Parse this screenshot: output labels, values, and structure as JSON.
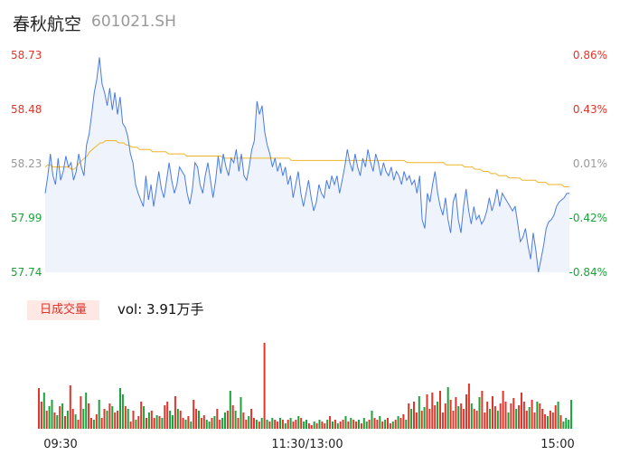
{
  "header": {
    "name": "春秋航空",
    "code": "601021.SH"
  },
  "volume_panel": {
    "badge": "日成交量",
    "vol_text": "vol: 3.91万手"
  },
  "colors": {
    "price_line": "#4a7ce0",
    "avg_line": "#f0b429",
    "up": "#e0352b",
    "down": "#1aa33a",
    "left_axis_upper": "#e0352b",
    "left_axis_lower": "#1aa33a"
  },
  "chart_data": [
    {
      "type": "line",
      "title": "",
      "xlabel": "",
      "ylabel": "",
      "ylim": [
        57.74,
        58.73
      ],
      "y_ticks": [
        "58.73",
        "58.48",
        "58.23",
        "57.99",
        "57.74"
      ],
      "y2_ticks": [
        "0.86%",
        "0.43%",
        "0.01%",
        "-0.42%",
        "-0.84%"
      ],
      "x_ticks": [
        "09:30",
        "11:30/13:00",
        "15:00"
      ],
      "series": [
        {
          "values": [
            58.1,
            58.18,
            58.28,
            58.18,
            58.14,
            58.26,
            58.16,
            58.2,
            58.27,
            58.22,
            58.24,
            58.16,
            58.2,
            58.28,
            58.22,
            58.18,
            58.32,
            58.37,
            58.46,
            58.56,
            58.62,
            58.72,
            58.6,
            58.56,
            58.5,
            58.58,
            58.48,
            58.56,
            58.46,
            58.54,
            58.42,
            58.4,
            58.36,
            58.28,
            58.24,
            58.14,
            58.1,
            58.07,
            58.04,
            58.18,
            58.07,
            58.14,
            58.04,
            58.12,
            58.2,
            58.12,
            58.08,
            58.16,
            58.24,
            58.16,
            58.1,
            58.14,
            58.22,
            58.2,
            58.18,
            58.1,
            58.05,
            58.12,
            58.24,
            58.22,
            58.14,
            58.1,
            58.18,
            58.24,
            58.16,
            58.08,
            58.16,
            58.27,
            58.19,
            58.28,
            58.22,
            58.18,
            58.26,
            58.24,
            58.3,
            58.2,
            58.28,
            58.18,
            58.16,
            58.22,
            58.3,
            58.34,
            58.52,
            58.46,
            58.5,
            58.38,
            58.32,
            58.28,
            58.22,
            58.26,
            58.2,
            58.24,
            58.18,
            58.22,
            58.14,
            58.18,
            58.08,
            58.14,
            58.2,
            58.1,
            58.04,
            58.1,
            58.16,
            58.08,
            58.02,
            58.06,
            58.14,
            58.1,
            58.08,
            58.16,
            58.12,
            58.18,
            58.14,
            58.18,
            58.1,
            58.16,
            58.22,
            58.3,
            58.24,
            58.2,
            58.28,
            58.22,
            58.18,
            58.26,
            58.22,
            58.3,
            58.24,
            58.2,
            58.28,
            58.24,
            58.18,
            58.24,
            58.2,
            58.18,
            58.22,
            58.16,
            58.2,
            58.18,
            58.14,
            58.2,
            58.16,
            58.18,
            58.14,
            58.16,
            58.1,
            58.18,
            57.98,
            57.94,
            58.1,
            58.06,
            58.14,
            58.2,
            58.1,
            58.04,
            58.0,
            58.08,
            57.98,
            57.92,
            58.06,
            58.1,
            57.98,
            57.92,
            58.04,
            58.12,
            58.02,
            57.96,
            58.04,
            57.98,
            58.0,
            57.96,
            57.98,
            58.02,
            58.08,
            58.02,
            58.06,
            58.12,
            58.04,
            58.1,
            58.08,
            58.06,
            58.04,
            58.02,
            58.04,
            57.96,
            57.88,
            57.9,
            57.94,
            57.86,
            57.8,
            57.92,
            57.84,
            57.74,
            57.8,
            57.86,
            57.94,
            57.97,
            57.98,
            58.0,
            58.04,
            58.06,
            58.07,
            58.08,
            58.1,
            58.1
          ]
        },
        {
          "values": [
            58.22,
            58.23,
            58.23,
            58.22,
            58.22,
            58.22,
            58.22,
            58.22,
            58.22,
            58.22,
            58.21,
            58.21,
            58.22,
            58.24,
            58.25,
            58.26,
            58.27,
            58.29,
            58.3,
            58.31,
            58.32,
            58.33,
            58.33,
            58.34,
            58.34,
            58.34,
            58.34,
            58.34,
            58.33,
            58.33,
            58.33,
            58.32,
            58.32,
            58.31,
            58.31,
            58.31,
            58.3,
            58.3,
            58.3,
            58.3,
            58.3,
            58.29,
            58.29,
            58.29,
            58.29,
            58.29,
            58.29,
            58.28,
            58.28,
            58.28,
            58.28,
            58.28,
            58.28,
            58.28,
            58.27,
            58.27,
            58.27,
            58.27,
            58.27,
            58.27,
            58.27,
            58.27,
            58.27,
            58.27,
            58.27,
            58.27,
            58.27,
            58.27,
            58.26,
            58.26,
            58.26,
            58.26,
            58.26,
            58.26,
            58.26,
            58.26,
            58.26,
            58.26,
            58.26,
            58.26,
            58.26,
            58.26,
            58.26,
            58.26,
            58.26,
            58.26,
            58.26,
            58.26,
            58.26,
            58.26,
            58.26,
            58.26,
            58.26,
            58.26,
            58.25,
            58.25,
            58.25,
            58.25,
            58.25,
            58.25,
            58.25,
            58.25,
            58.25,
            58.25,
            58.25,
            58.25,
            58.25,
            58.25,
            58.25,
            58.25,
            58.25,
            58.25,
            58.25,
            58.25,
            58.25,
            58.25,
            58.25,
            58.25,
            58.25,
            58.25,
            58.25,
            58.25,
            58.25,
            58.25,
            58.25,
            58.25,
            58.25,
            58.25,
            58.25,
            58.25,
            58.25,
            58.25,
            58.25,
            58.25,
            58.25,
            58.25,
            58.25,
            58.25,
            58.24,
            58.24,
            58.24,
            58.24,
            58.24,
            58.24,
            58.24,
            58.24,
            58.24,
            58.24,
            58.24,
            58.24,
            58.24,
            58.24,
            58.24,
            58.23,
            58.23,
            58.23,
            58.23,
            58.23,
            58.23,
            58.23,
            58.22,
            58.22,
            58.22,
            58.22,
            58.21,
            58.21,
            58.21,
            58.2,
            58.2,
            58.2,
            58.19,
            58.19,
            58.19,
            58.18,
            58.18,
            58.18,
            58.18,
            58.17,
            58.17,
            58.17,
            58.17,
            58.17,
            58.16,
            58.16,
            58.16,
            58.16,
            58.16,
            58.16,
            58.15,
            58.15,
            58.15,
            58.15,
            58.14,
            58.14,
            58.14,
            58.14,
            58.14,
            58.14,
            58.13,
            58.13,
            58.13
          ]
        }
      ]
    },
    {
      "type": "bar",
      "title": "",
      "series": [
        {
          "values": [
            45,
            30,
            40,
            20,
            25,
            32,
            18,
            15,
            25,
            28,
            14,
            20,
            48,
            22,
            16,
            10,
            36,
            22,
            40,
            28,
            12,
            10,
            16,
            32,
            12,
            22,
            20,
            28,
            25,
            18,
            20,
            45,
            38,
            25,
            22,
            8,
            20,
            10,
            14,
            30,
            25,
            12,
            18,
            20,
            12,
            15,
            14,
            12,
            26,
            30,
            20,
            15,
            36,
            22,
            20,
            12,
            10,
            14,
            8,
            32,
            22,
            20,
            12,
            15,
            10,
            8,
            12,
            14,
            22,
            10,
            12,
            18,
            20,
            42,
            26,
            20,
            12,
            35,
            18,
            10,
            14,
            22,
            12,
            10,
            8,
            12,
            95,
            10,
            8,
            12,
            10,
            8,
            12,
            10,
            6,
            10,
            12,
            8,
            10,
            14,
            12,
            8,
            10,
            6,
            4,
            8,
            6,
            10,
            8,
            6,
            10,
            14,
            8,
            10,
            6,
            8,
            10,
            14,
            8,
            12,
            10,
            8,
            10,
            6,
            12,
            8,
            10,
            20,
            12,
            10,
            14,
            8,
            10,
            12,
            6,
            8,
            10,
            14,
            12,
            16,
            10,
            28,
            22,
            30,
            18,
            36,
            20,
            24,
            38,
            22,
            40,
            26,
            30,
            42,
            18,
            28,
            46,
            32,
            20,
            35,
            25,
            28,
            22,
            38,
            50,
            28,
            22,
            20,
            35,
            42,
            18,
            30,
            22,
            36,
            25,
            20,
            28,
            42,
            30,
            18,
            28,
            34,
            22,
            26,
            40,
            30,
            20,
            24,
            32,
            18,
            30,
            28,
            22,
            16,
            14,
            20,
            18,
            26,
            30,
            15,
            8,
            12,
            10,
            32
          ]
        }
      ],
      "up_flags": [
        1,
        1,
        0,
        1,
        0,
        0,
        1,
        0,
        1,
        0,
        1,
        0,
        1,
        1,
        0,
        1,
        1,
        0,
        0,
        1,
        1,
        0,
        1,
        0,
        1,
        1,
        0,
        1,
        0,
        1,
        1,
        0,
        0,
        1,
        0,
        1,
        1,
        0,
        1,
        1,
        0,
        1,
        0,
        1,
        1,
        0,
        1,
        0,
        1,
        1,
        0,
        0,
        1,
        0,
        1,
        1,
        0,
        1,
        0,
        1,
        1,
        0,
        1,
        1,
        0,
        0,
        1,
        0,
        1,
        1,
        0,
        0,
        1,
        0,
        1,
        0,
        1,
        0,
        1,
        1,
        0,
        1,
        1,
        0,
        1,
        0,
        1,
        0,
        1,
        0,
        1,
        1,
        0,
        1,
        0,
        1,
        0,
        1,
        1,
        0,
        1,
        0,
        0,
        1,
        1,
        0,
        1,
        0,
        1,
        1,
        0,
        1,
        0,
        1,
        0,
        1,
        1,
        0,
        1,
        0,
        1,
        1,
        0,
        1,
        0,
        0,
        1,
        0,
        1,
        1,
        0,
        1,
        0,
        1,
        1,
        0,
        1,
        0,
        1,
        1,
        0,
        1,
        0,
        1,
        1,
        0,
        1,
        0,
        1,
        1,
        1,
        1,
        0,
        1,
        1,
        1,
        0,
        1,
        1,
        1,
        0,
        1,
        1,
        1,
        1,
        0,
        1,
        1,
        0,
        1,
        1,
        1,
        0,
        1,
        1,
        0,
        1,
        1,
        1,
        0,
        1,
        1,
        0,
        1,
        1,
        1,
        1,
        0,
        1,
        1,
        0,
        1,
        1,
        1,
        0,
        1,
        1,
        1,
        0,
        1,
        0
      ]
    }
  ]
}
